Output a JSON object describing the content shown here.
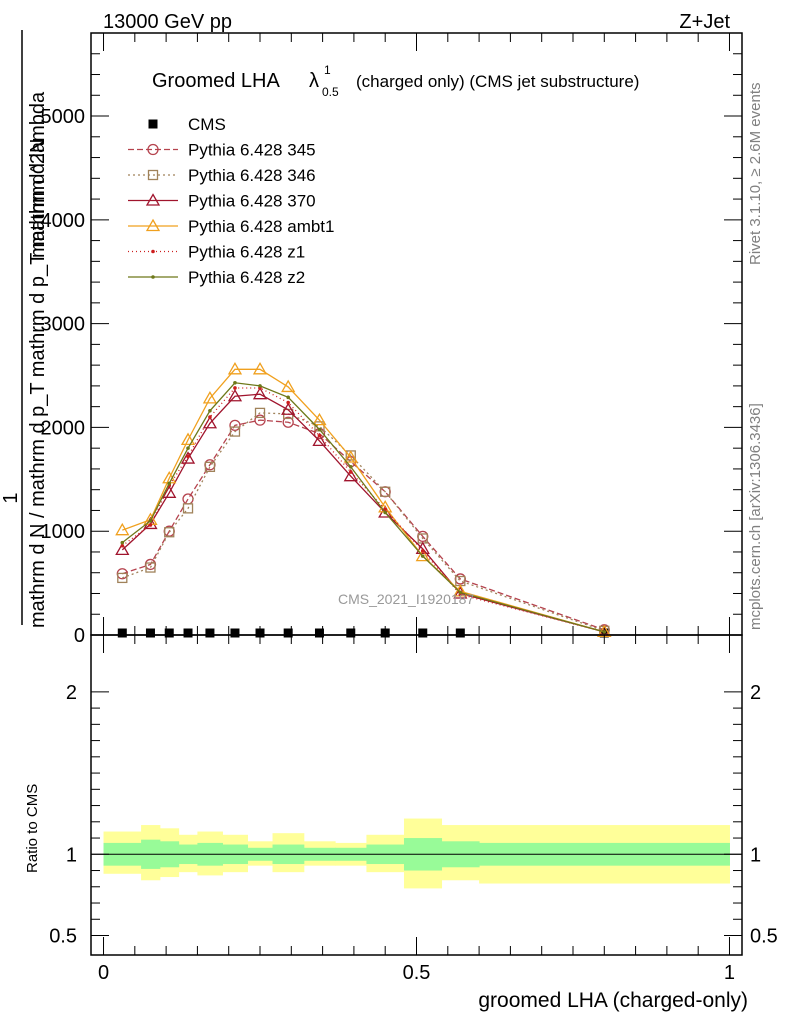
{
  "header": {
    "left": "13000 GeV pp",
    "right": "Z+Jet"
  },
  "side_labels": {
    "rivet": "Rivet 3.1.10, ≥ 2.6M events",
    "mcplots": "mcplots.cern.ch [arXiv:1306.3436]"
  },
  "watermark": "CMS_2021_I1920187",
  "chart_data": [
    {
      "type": "line",
      "title": {
        "main": "Groomed LHA",
        "lambda": "λ",
        "sup": "1",
        "sub": "0.5",
        "rest": "(charged only) (CMS jet substructure)"
      },
      "ylabel": {
        "numerator": "1",
        "denominator": "mathrm d N / mathrm d p_T mathrm d p_T mathrm d lambda",
        "top": "mathrm d^2N"
      },
      "ylim": [
        0,
        5800
      ],
      "xlim": [
        -0.02,
        1.02
      ],
      "y_ticks": [
        0,
        1000,
        2000,
        3000,
        4000,
        5000
      ],
      "y_tick_labels": [
        "0",
        "1000",
        "2000",
        "3000",
        "4000",
        "5000"
      ],
      "legend_position": "top-left",
      "x": [
        0.03,
        0.075,
        0.105,
        0.135,
        0.17,
        0.21,
        0.25,
        0.295,
        0.345,
        0.395,
        0.45,
        0.51,
        0.57,
        0.8
      ],
      "series": [
        {
          "name": "CMS",
          "color": "#000000",
          "marker": "square",
          "values": [
            0,
            0,
            0,
            0,
            0,
            0,
            0,
            0,
            0,
            0,
            0,
            0,
            0,
            0
          ]
        },
        {
          "name": "Pythia 6.428 345",
          "color": "#b5434e",
          "marker": "circle",
          "dash": "6,3",
          "values": [
            590,
            680,
            1000,
            1310,
            1640,
            2020,
            2070,
            2050,
            1940,
            1670,
            1380,
            950,
            540,
            50
          ]
        },
        {
          "name": "Pythia 6.428 346",
          "color": "#a0825a",
          "marker": "square-open",
          "dash": "2,3",
          "values": [
            550,
            650,
            990,
            1220,
            1620,
            1960,
            2140,
            2130,
            2010,
            1730,
            1380,
            930,
            520,
            40
          ]
        },
        {
          "name": "Pythia 6.428 370",
          "color": "#a0142d",
          "marker": "triangle-open",
          "dash": "",
          "values": [
            820,
            1070,
            1370,
            1700,
            2040,
            2300,
            2320,
            2170,
            1870,
            1530,
            1180,
            830,
            400,
            30
          ]
        },
        {
          "name": "Pythia 6.428 ambt1",
          "color": "#f0a01e",
          "marker": "triangle-open",
          "dash": "",
          "values": [
            1010,
            1110,
            1510,
            1880,
            2280,
            2560,
            2560,
            2390,
            2070,
            1710,
            1230,
            760,
            420,
            30
          ]
        },
        {
          "name": "Pythia 6.428 z1",
          "color": "#cd1e1e",
          "marker": "dot",
          "dash": "1,3",
          "values": [
            860,
            1060,
            1440,
            1720,
            2100,
            2380,
            2380,
            2240,
            1920,
            1570,
            1210,
            810,
            390,
            30
          ]
        },
        {
          "name": "Pythia 6.428 z2",
          "color": "#6e7819",
          "marker": "dot",
          "dash": "",
          "values": [
            890,
            1100,
            1460,
            1800,
            2160,
            2430,
            2400,
            2290,
            1980,
            1620,
            1180,
            760,
            410,
            30
          ]
        }
      ]
    },
    {
      "type": "area",
      "ylabel": "Ratio to CMS",
      "xlabel": "groomed LHA (charged-only)",
      "ylim": [
        0.38,
        2.35
      ],
      "y_ticks": [
        0.5,
        1,
        2
      ],
      "y_tick_labels": [
        "0.5",
        "1",
        "2"
      ],
      "x_ticks": [
        0,
        0.5,
        1
      ],
      "x_tick_labels": [
        "0",
        "0.5",
        "1"
      ],
      "bin_edges": [
        0.0,
        0.06,
        0.09,
        0.12,
        0.15,
        0.19,
        0.23,
        0.27,
        0.32,
        0.37,
        0.42,
        0.48,
        0.54,
        0.6,
        1.0
      ],
      "stat_band": {
        "color": "#98fb98",
        "low": [
          0.93,
          0.91,
          0.92,
          0.94,
          0.93,
          0.94,
          0.96,
          0.94,
          0.96,
          0.96,
          0.94,
          0.9,
          0.92,
          0.93
        ],
        "high": [
          1.07,
          1.09,
          1.08,
          1.06,
          1.07,
          1.06,
          1.04,
          1.06,
          1.04,
          1.04,
          1.06,
          1.1,
          1.08,
          1.07
        ]
      },
      "total_band": {
        "color": "#ffff99",
        "low": [
          0.88,
          0.84,
          0.86,
          0.89,
          0.87,
          0.89,
          0.93,
          0.89,
          0.93,
          0.93,
          0.89,
          0.79,
          0.84,
          0.82
        ],
        "high": [
          1.14,
          1.18,
          1.16,
          1.12,
          1.14,
          1.12,
          1.08,
          1.13,
          1.08,
          1.07,
          1.12,
          1.22,
          1.18,
          1.18
        ]
      },
      "reference": 1
    }
  ]
}
